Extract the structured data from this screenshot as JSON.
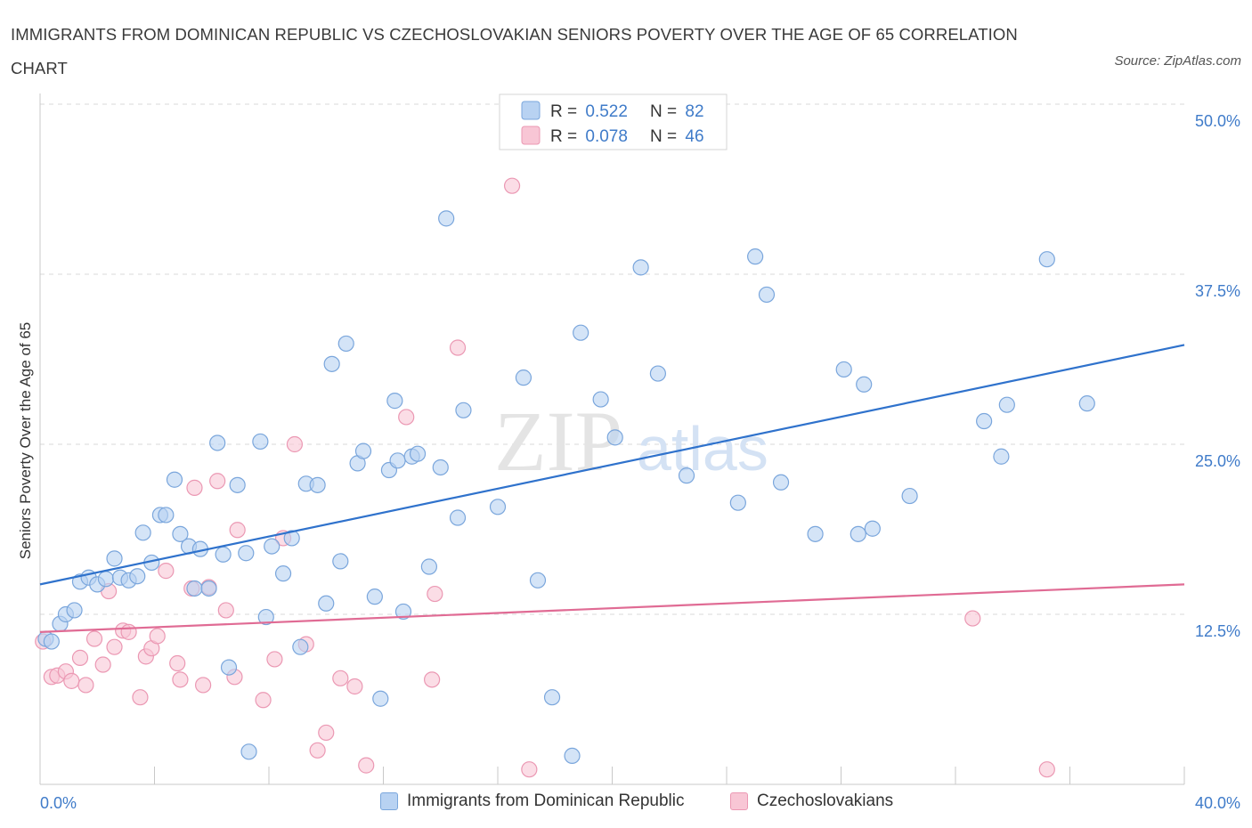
{
  "title": "IMMIGRANTS FROM DOMINICAN REPUBLIC VS CZECHOSLOVAKIAN SENIORS POVERTY OVER THE AGE OF 65 CORRELATION CHART",
  "source": "Source: ZipAtlas.com",
  "watermark": {
    "zip": "ZIP",
    "atlas": "atlas"
  },
  "legend_top": [
    {
      "r_label": "R = ",
      "r_value": "0.522",
      "n_label": "N = ",
      "n_value": "82"
    },
    {
      "r_label": "R = ",
      "r_value": "0.078",
      "n_label": "N = ",
      "n_value": "46"
    }
  ],
  "legend_bottom": [
    "Immigrants from Dominican Republic",
    "Czechoslovakians"
  ],
  "colors": {
    "blue_fill": "#b8d2f2",
    "blue_stroke": "#7aa6dc",
    "blue_line": "#2f72cc",
    "pink_fill": "#f8c6d5",
    "pink_stroke": "#eb98b3",
    "pink_line": "#e06b94",
    "tick_label": "#3f7bc9",
    "grid": "#d9d9d9"
  },
  "chart_data": {
    "type": "scatter",
    "xlabel": "",
    "ylabel": "Seniors Poverty Over the Age of 65",
    "xlim": [
      0,
      40
    ],
    "ylim": [
      0,
      50
    ],
    "x_tick_labels": [
      "0.0%",
      "40.0%"
    ],
    "y_ticks": [
      12.5,
      25.0,
      37.5,
      50.0
    ],
    "y_tick_labels": [
      "12.5%",
      "25.0%",
      "37.5%",
      "50.0%"
    ],
    "grid": "horizontal dashed",
    "series": [
      {
        "name": "Immigrants from Dominican Republic",
        "r": 0.522,
        "n": 82,
        "trend": {
          "x": [
            0,
            40
          ],
          "y": [
            14.7,
            32.3
          ]
        },
        "points": [
          [
            0.2,
            10.7
          ],
          [
            0.4,
            10.5
          ],
          [
            0.7,
            11.8
          ],
          [
            0.9,
            12.5
          ],
          [
            1.2,
            12.8
          ],
          [
            1.4,
            14.9
          ],
          [
            1.7,
            15.2
          ],
          [
            2.0,
            14.7
          ],
          [
            2.3,
            15.1
          ],
          [
            2.6,
            16.6
          ],
          [
            2.8,
            15.2
          ],
          [
            3.1,
            15.0
          ],
          [
            3.4,
            15.3
          ],
          [
            3.6,
            18.5
          ],
          [
            3.9,
            16.3
          ],
          [
            4.2,
            19.8
          ],
          [
            4.4,
            19.8
          ],
          [
            4.7,
            22.4
          ],
          [
            4.9,
            18.4
          ],
          [
            5.2,
            17.5
          ],
          [
            5.4,
            14.4
          ],
          [
            5.6,
            17.3
          ],
          [
            5.9,
            14.4
          ],
          [
            6.2,
            25.1
          ],
          [
            6.4,
            16.9
          ],
          [
            6.6,
            8.6
          ],
          [
            6.9,
            22.0
          ],
          [
            7.2,
            17.0
          ],
          [
            7.3,
            2.4
          ],
          [
            7.7,
            25.2
          ],
          [
            7.9,
            12.3
          ],
          [
            8.1,
            17.5
          ],
          [
            8.5,
            15.5
          ],
          [
            8.8,
            18.1
          ],
          [
            9.1,
            10.1
          ],
          [
            9.3,
            22.1
          ],
          [
            9.7,
            22.0
          ],
          [
            10.0,
            13.3
          ],
          [
            10.2,
            30.9
          ],
          [
            10.5,
            16.4
          ],
          [
            10.7,
            32.4
          ],
          [
            11.1,
            23.6
          ],
          [
            11.3,
            24.5
          ],
          [
            11.7,
            13.8
          ],
          [
            11.9,
            6.3
          ],
          [
            12.2,
            23.1
          ],
          [
            12.4,
            28.2
          ],
          [
            12.5,
            23.8
          ],
          [
            12.7,
            12.7
          ],
          [
            13.0,
            24.1
          ],
          [
            13.2,
            24.3
          ],
          [
            13.6,
            16.0
          ],
          [
            14.0,
            23.3
          ],
          [
            14.2,
            41.6
          ],
          [
            14.6,
            19.6
          ],
          [
            14.8,
            27.5
          ],
          [
            16.0,
            20.4
          ],
          [
            16.9,
            29.9
          ],
          [
            17.4,
            15.0
          ],
          [
            17.9,
            6.4
          ],
          [
            18.6,
            2.1
          ],
          [
            18.9,
            33.2
          ],
          [
            19.6,
            28.3
          ],
          [
            20.1,
            25.5
          ],
          [
            21.0,
            38.0
          ],
          [
            21.6,
            30.2
          ],
          [
            22.6,
            22.7
          ],
          [
            24.4,
            20.7
          ],
          [
            25.0,
            38.8
          ],
          [
            25.4,
            36.0
          ],
          [
            25.9,
            22.2
          ],
          [
            27.1,
            18.4
          ],
          [
            28.1,
            30.5
          ],
          [
            28.6,
            18.4
          ],
          [
            28.8,
            29.4
          ],
          [
            29.1,
            18.8
          ],
          [
            30.4,
            21.2
          ],
          [
            33.0,
            26.7
          ],
          [
            33.6,
            24.1
          ],
          [
            33.8,
            27.9
          ],
          [
            35.2,
            38.6
          ],
          [
            36.6,
            28.0
          ]
        ]
      },
      {
        "name": "Czechoslovakians",
        "r": 0.078,
        "n": 46,
        "trend": {
          "x": [
            0,
            40
          ],
          "y": [
            11.2,
            14.7
          ]
        },
        "points": [
          [
            0.1,
            10.5
          ],
          [
            0.4,
            7.9
          ],
          [
            0.6,
            8.0
          ],
          [
            0.9,
            8.3
          ],
          [
            1.1,
            7.6
          ],
          [
            1.4,
            9.3
          ],
          [
            1.6,
            7.3
          ],
          [
            1.9,
            10.7
          ],
          [
            2.2,
            8.8
          ],
          [
            2.4,
            14.2
          ],
          [
            2.6,
            10.1
          ],
          [
            2.9,
            11.3
          ],
          [
            3.1,
            11.2
          ],
          [
            3.5,
            6.4
          ],
          [
            3.7,
            9.4
          ],
          [
            3.9,
            10.0
          ],
          [
            4.1,
            10.9
          ],
          [
            4.4,
            15.7
          ],
          [
            4.8,
            8.9
          ],
          [
            4.9,
            7.7
          ],
          [
            5.3,
            14.4
          ],
          [
            5.4,
            21.8
          ],
          [
            5.7,
            7.3
          ],
          [
            5.9,
            14.5
          ],
          [
            6.2,
            22.3
          ],
          [
            6.5,
            12.8
          ],
          [
            6.8,
            7.9
          ],
          [
            6.9,
            18.7
          ],
          [
            7.8,
            6.2
          ],
          [
            8.2,
            9.2
          ],
          [
            8.5,
            18.1
          ],
          [
            8.9,
            25.0
          ],
          [
            9.3,
            10.3
          ],
          [
            9.7,
            2.5
          ],
          [
            10.0,
            3.8
          ],
          [
            10.5,
            7.8
          ],
          [
            11.0,
            7.2
          ],
          [
            11.4,
            1.4
          ],
          [
            12.8,
            27.0
          ],
          [
            13.7,
            7.7
          ],
          [
            13.8,
            14.0
          ],
          [
            14.6,
            32.1
          ],
          [
            16.5,
            44.0
          ],
          [
            17.1,
            1.1
          ],
          [
            32.6,
            12.2
          ],
          [
            35.2,
            1.1
          ]
        ]
      }
    ]
  }
}
